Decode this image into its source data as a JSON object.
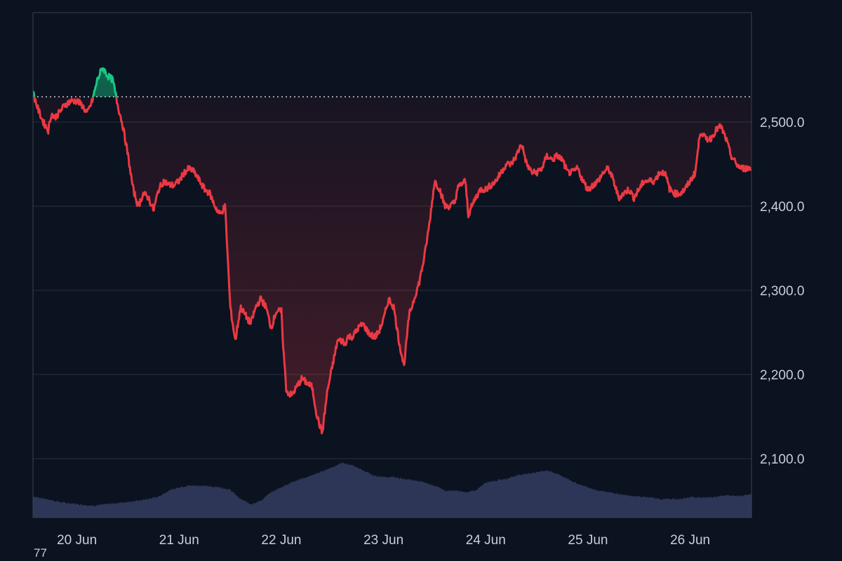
{
  "corner_text": "77",
  "colors": {
    "background": "#0b1220",
    "grid": "#2a3140",
    "frame": "#3a4150",
    "above_baseline": "#16c784",
    "below_baseline": "#ea3943",
    "volume": "#2e3658",
    "baseline_line": "#c9ced8",
    "text": "#c9ced8"
  },
  "chart_data": {
    "type": "line",
    "subtype": "baseline-price-with-volume",
    "y_axis_position": "right",
    "ylim": [
      2030,
      2630
    ],
    "y_ticks": [
      2100,
      2200,
      2300,
      2400,
      2500
    ],
    "y_tick_labels": [
      "2,100.0",
      "2,200.0",
      "2,300.0",
      "2,400.0",
      "2,500.0"
    ],
    "x_tick_labels": [
      "20 Jun",
      "21 Jun",
      "22 Jun",
      "23 Jun",
      "24 Jun",
      "25 Jun",
      "26 Jun"
    ],
    "x_ticks_day": [
      0,
      1,
      2,
      3,
      4,
      5,
      6
    ],
    "x_range_day": [
      -0.43,
      6.6
    ],
    "baseline": 2530,
    "grid": true,
    "price": {
      "x_day": [
        -0.43,
        -0.38,
        -0.33,
        -0.28,
        -0.25,
        -0.22,
        -0.18,
        -0.12,
        -0.06,
        0.0,
        0.05,
        0.1,
        0.15,
        0.2,
        0.25,
        0.3,
        0.35,
        0.4,
        0.45,
        0.5,
        0.55,
        0.6,
        0.65,
        0.7,
        0.75,
        0.8,
        0.85,
        0.9,
        0.95,
        1.0,
        1.05,
        1.1,
        1.15,
        1.2,
        1.25,
        1.3,
        1.35,
        1.4,
        1.45,
        1.5,
        1.55,
        1.6,
        1.65,
        1.7,
        1.75,
        1.8,
        1.85,
        1.9,
        1.95,
        2.0,
        2.02,
        2.05,
        2.1,
        2.15,
        2.2,
        2.25,
        2.3,
        2.35,
        2.4,
        2.45,
        2.5,
        2.55,
        2.6,
        2.62,
        2.65,
        2.7,
        2.75,
        2.8,
        2.85,
        2.9,
        2.92,
        2.95,
        3.0,
        3.05,
        3.1,
        3.15,
        3.2,
        3.25,
        3.3,
        3.35,
        3.4,
        3.45,
        3.5,
        3.55,
        3.6,
        3.65,
        3.7,
        3.72,
        3.75,
        3.8,
        3.83,
        3.9,
        3.95,
        4.0,
        4.05,
        4.1,
        4.15,
        4.2,
        4.25,
        4.3,
        4.35,
        4.4,
        4.45,
        4.5,
        4.55,
        4.6,
        4.65,
        4.7,
        4.75,
        4.8,
        4.85,
        4.9,
        4.95,
        5.0,
        5.05,
        5.1,
        5.15,
        5.2,
        5.25,
        5.3,
        5.35,
        5.4,
        5.45,
        5.5,
        5.55,
        5.6,
        5.65,
        5.7,
        5.75,
        5.8,
        5.85,
        5.9,
        5.95,
        6.0,
        6.05,
        6.1,
        6.15,
        6.2,
        6.25,
        6.3,
        6.35,
        6.4,
        6.45,
        6.5,
        6.55,
        6.6
      ],
      "y": [
        2535,
        2515,
        2500,
        2490,
        2510,
        2505,
        2510,
        2520,
        2525,
        2525,
        2520,
        2510,
        2525,
        2550,
        2565,
        2555,
        2550,
        2520,
        2495,
        2460,
        2420,
        2400,
        2415,
        2410,
        2395,
        2420,
        2430,
        2425,
        2425,
        2430,
        2440,
        2445,
        2440,
        2430,
        2420,
        2415,
        2400,
        2390,
        2400,
        2280,
        2240,
        2280,
        2270,
        2260,
        2280,
        2290,
        2280,
        2255,
        2275,
        2275,
        2230,
        2180,
        2175,
        2185,
        2195,
        2190,
        2185,
        2150,
        2130,
        2180,
        2210,
        2240,
        2240,
        2235,
        2245,
        2245,
        2255,
        2260,
        2250,
        2245,
        2245,
        2250,
        2265,
        2290,
        2280,
        2240,
        2210,
        2270,
        2290,
        2310,
        2340,
        2380,
        2430,
        2420,
        2400,
        2400,
        2405,
        2420,
        2425,
        2430,
        2390,
        2410,
        2420,
        2420,
        2425,
        2430,
        2440,
        2450,
        2450,
        2460,
        2475,
        2450,
        2440,
        2440,
        2445,
        2460,
        2455,
        2460,
        2455,
        2440,
        2440,
        2445,
        2430,
        2420,
        2425,
        2430,
        2440,
        2445,
        2430,
        2410,
        2415,
        2420,
        2410,
        2420,
        2430,
        2430,
        2430,
        2440,
        2440,
        2420,
        2415,
        2415,
        2420,
        2430,
        2440,
        2490,
        2480,
        2480,
        2490,
        2495,
        2480,
        2460,
        2450,
        2445,
        2445,
        2445
      ]
    },
    "volume": {
      "x_day": [
        -0.43,
        -0.3,
        -0.15,
        0.0,
        0.15,
        0.3,
        0.45,
        0.6,
        0.7,
        0.8,
        0.9,
        1.0,
        1.1,
        1.2,
        1.3,
        1.4,
        1.5,
        1.6,
        1.7,
        1.8,
        1.9,
        2.0,
        2.1,
        2.2,
        2.3,
        2.4,
        2.5,
        2.6,
        2.7,
        2.8,
        2.9,
        3.0,
        3.1,
        3.2,
        3.3,
        3.4,
        3.5,
        3.6,
        3.7,
        3.8,
        3.9,
        4.0,
        4.1,
        4.2,
        4.3,
        4.4,
        4.5,
        4.6,
        4.7,
        4.8,
        4.9,
        5.0,
        5.1,
        5.2,
        5.3,
        5.4,
        5.5,
        5.6,
        5.7,
        5.8,
        5.9,
        6.0,
        6.1,
        6.2,
        6.3,
        6.4,
        6.5,
        6.6
      ],
      "y": [
        2055,
        2052,
        2048,
        2046,
        2044,
        2046,
        2048,
        2050,
        2052,
        2055,
        2062,
        2066,
        2068,
        2068,
        2067,
        2066,
        2063,
        2052,
        2046,
        2050,
        2060,
        2066,
        2072,
        2076,
        2080,
        2085,
        2090,
        2095,
        2092,
        2086,
        2080,
        2078,
        2078,
        2076,
        2074,
        2072,
        2068,
        2062,
        2062,
        2060,
        2062,
        2072,
        2074,
        2076,
        2080,
        2082,
        2084,
        2086,
        2082,
        2076,
        2070,
        2066,
        2062,
        2060,
        2058,
        2056,
        2055,
        2054,
        2052,
        2052,
        2052,
        2054,
        2054,
        2054,
        2056,
        2056,
        2056,
        2058
      ]
    }
  }
}
